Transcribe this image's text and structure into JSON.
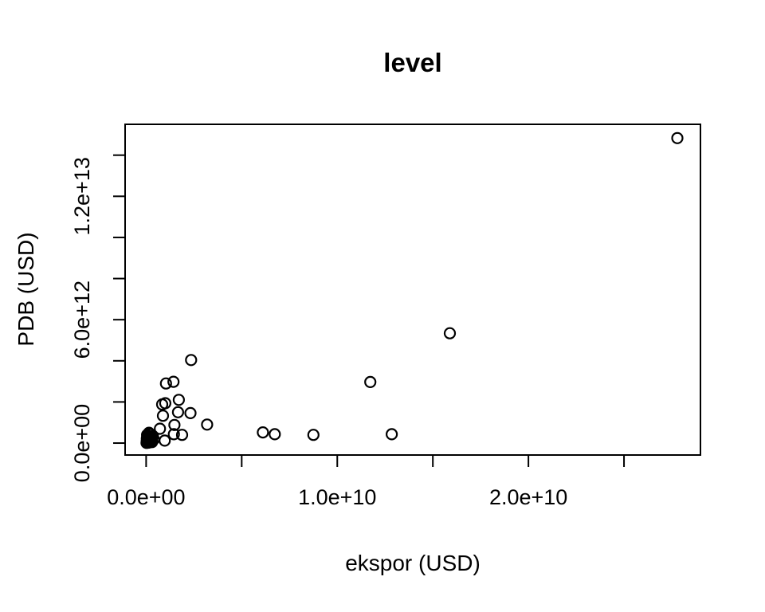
{
  "chart_data": {
    "type": "scatter",
    "title": "level",
    "xlabel": "ekspor (USD)",
    "ylabel": "PDB (USD)",
    "xlim": [
      -1100000000.0,
      29000000000.0
    ],
    "ylim": [
      -580000000000.0,
      15500000000000.0
    ],
    "grid": false,
    "legend": null,
    "marker": "open-circle",
    "marker_color": "#000000",
    "background_color": "#ffffff",
    "x_ticks": [
      {
        "value": 0,
        "label": "0.0e+00"
      },
      {
        "value": 5000000000.0,
        "label": ""
      },
      {
        "value": 10000000000.0,
        "label": "1.0e+10"
      },
      {
        "value": 15000000000.0,
        "label": ""
      },
      {
        "value": 20000000000.0,
        "label": "2.0e+10"
      },
      {
        "value": 25000000000.0,
        "label": ""
      }
    ],
    "y_ticks": [
      {
        "value": 0,
        "label": "0.0e+00"
      },
      {
        "value": 2000000000000.0,
        "label": ""
      },
      {
        "value": 4000000000000.0,
        "label": ""
      },
      {
        "value": 6000000000000.0,
        "label": "6.0e+12"
      },
      {
        "value": 8000000000000.0,
        "label": ""
      },
      {
        "value": 10000000000000.0,
        "label": ""
      },
      {
        "value": 12000000000000.0,
        "label": "1.2e+13"
      },
      {
        "value": 14000000000000.0,
        "label": ""
      }
    ],
    "points": [
      [
        20000000.0,
        10000000000.0
      ],
      [
        50000000.0,
        50000000000.0
      ],
      [
        100000000.0,
        100000000000.0
      ],
      [
        150000000.0,
        30000000000.0
      ],
      [
        80000000.0,
        200000000000.0
      ],
      [
        200000000.0,
        150000000000.0
      ],
      [
        120000000.0,
        300000000000.0
      ],
      [
        250000000.0,
        50000000000.0
      ],
      [
        300000000.0,
        220000000000.0
      ],
      [
        50000000.0,
        400000000000.0
      ],
      [
        180000000.0,
        450000000000.0
      ],
      [
        350000000.0,
        350000000000.0
      ],
      [
        280000000.0,
        120000000000.0
      ],
      [
        100000000.0,
        20000000000.0
      ],
      [
        220000000.0,
        280000000000.0
      ],
      [
        400000000.0,
        180000000000.0
      ],
      [
        150000000.0,
        500000000000.0
      ],
      [
        30000000.0,
        80000000000.0
      ],
      [
        70000000.0,
        140000000000.0
      ],
      [
        120000000.0,
        60000000000.0
      ],
      [
        170000000.0,
        220000000000.0
      ],
      [
        60000000.0,
        280000000000.0
      ],
      [
        240000000.0,
        200000000000.0
      ],
      [
        310000000.0,
        50000000000.0
      ],
      [
        90000000.0,
        360000000000.0
      ],
      [
        140000000.0,
        160000000000.0
      ],
      [
        260000000.0,
        330000000000.0
      ],
      [
        40000000.0,
        220000000000.0
      ],
      [
        190000000.0,
        80000000000.0
      ],
      [
        720000000.0,
        700000000000.0
      ],
      [
        970000000.0,
        120000000000.0
      ],
      [
        1450000000.0,
        430000000000.0
      ],
      [
        1880000000.0,
        400000000000.0
      ],
      [
        1480000000.0,
        880000000000.0
      ],
      [
        880000000.0,
        1330000000000.0
      ],
      [
        1670000000.0,
        1500000000000.0
      ],
      [
        2320000000.0,
        1460000000000.0
      ],
      [
        840000000.0,
        1880000000000.0
      ],
      [
        1000000000.0,
        1940000000000.0
      ],
      [
        1710000000.0,
        2100000000000.0
      ],
      [
        1040000000.0,
        2900000000000.0
      ],
      [
        1430000000.0,
        2980000000000.0
      ],
      [
        2350000000.0,
        4040000000000.0
      ],
      [
        3190000000.0,
        900000000000.0
      ],
      [
        6110000000.0,
        520000000000.0
      ],
      [
        6730000000.0,
        430000000000.0
      ],
      [
        8750000000.0,
        400000000000.0
      ],
      [
        12850000000.0,
        430000000000.0
      ],
      [
        11730000000.0,
        2970000000000.0
      ],
      [
        15890000000.0,
        5340000000000.0
      ],
      [
        27790000000.0,
        14830000000000.0
      ]
    ]
  }
}
